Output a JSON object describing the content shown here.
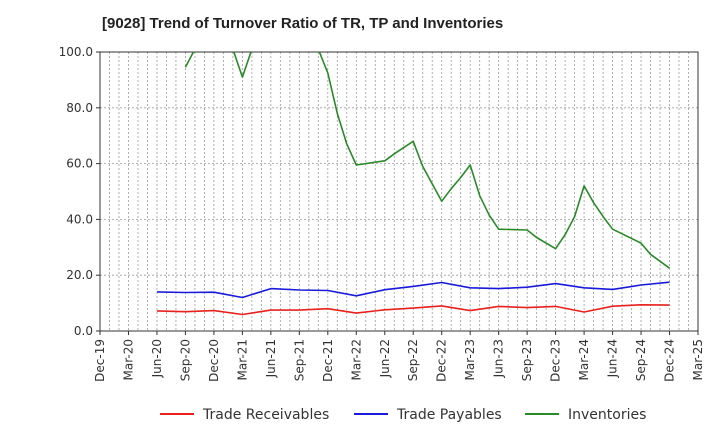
{
  "chart_data": {
    "type": "line",
    "title": "[9028]  Trend of Turnover Ratio of TR, TP and Inventories",
    "xlabel": "",
    "ylabel": "",
    "ylim": [
      0,
      100
    ],
    "yticks": [
      "0.0",
      "20.0",
      "40.0",
      "60.0",
      "80.0",
      "100.0"
    ],
    "xticks": [
      "Dec-19",
      "Mar-20",
      "Jun-20",
      "Sep-20",
      "Dec-20",
      "Mar-21",
      "Jun-21",
      "Sep-21",
      "Dec-21",
      "Mar-22",
      "Jun-22",
      "Sep-22",
      "Dec-22",
      "Mar-23",
      "Jun-23",
      "Sep-23",
      "Dec-23",
      "Mar-24",
      "Jun-24",
      "Sep-24",
      "Dec-24",
      "Mar-25"
    ],
    "x_start": "Dec-19",
    "grid": true,
    "legend_position": "bottom",
    "series": [
      {
        "name": "Trade Receivables",
        "color": "#e8211d",
        "x": [
          "Jun-20",
          "Sep-20",
          "Dec-20",
          "Mar-21",
          "Jun-21",
          "Sep-21",
          "Dec-21",
          "Mar-22",
          "Jun-22",
          "Sep-22",
          "Dec-22",
          "Mar-23",
          "Jun-23",
          "Sep-23",
          "Dec-23",
          "Mar-24",
          "Jun-24",
          "Sep-24",
          "Dec-24"
        ],
        "values": [
          7.2,
          6.9,
          7.3,
          5.9,
          7.5,
          7.5,
          8.0,
          6.4,
          7.6,
          8.2,
          9.0,
          7.3,
          8.8,
          8.4,
          8.8,
          6.8,
          8.9,
          9.4,
          9.3
        ]
      },
      {
        "name": "Trade Payables",
        "color": "#1a1adb",
        "x": [
          "Jun-20",
          "Sep-20",
          "Dec-20",
          "Mar-21",
          "Jun-21",
          "Sep-21",
          "Dec-21",
          "Mar-22",
          "Jun-22",
          "Sep-22",
          "Dec-22",
          "Mar-23",
          "Jun-23",
          "Sep-23",
          "Dec-23",
          "Mar-24",
          "Jun-24",
          "Sep-24",
          "Dec-24"
        ],
        "values": [
          14.0,
          13.8,
          13.9,
          12.0,
          15.2,
          14.7,
          14.5,
          12.6,
          14.8,
          16.0,
          17.4,
          15.5,
          15.2,
          15.7,
          17.0,
          15.5,
          14.9,
          16.5,
          17.5
        ]
      },
      {
        "name": "Inventories",
        "color": "#2a8a2a",
        "x": [
          "Sep-20",
          "Oct-20",
          "Nov-20",
          "Feb-21",
          "Mar-21",
          "Apr-21",
          "Nov-21",
          "Dec-21",
          "Jan-22",
          "Feb-22",
          "Mar-22",
          "Jun-22",
          "Jul-22",
          "Sep-22",
          "Oct-22",
          "Dec-22",
          "Jan-23",
          "Feb-23",
          "Mar-23",
          "Apr-23",
          "May-23",
          "Jun-23",
          "Sep-23",
          "Oct-23",
          "Dec-23",
          "Jan-24",
          "Feb-24",
          "Mar-24",
          "Apr-24",
          "May-24",
          "Jun-24",
          "Sep-24",
          "Oct-24",
          "Dec-24"
        ],
        "values": [
          94.5,
          101,
          101,
          101,
          91,
          101,
          101,
          92.5,
          78,
          67,
          59.5,
          61,
          63.5,
          68,
          59,
          46.5,
          51,
          55,
          59.5,
          48.5,
          41.5,
          36.5,
          36.2,
          33.5,
          29.5,
          34.5,
          41,
          52,
          46,
          41,
          36.5,
          31.5,
          27.5,
          22.5
        ]
      }
    ]
  }
}
